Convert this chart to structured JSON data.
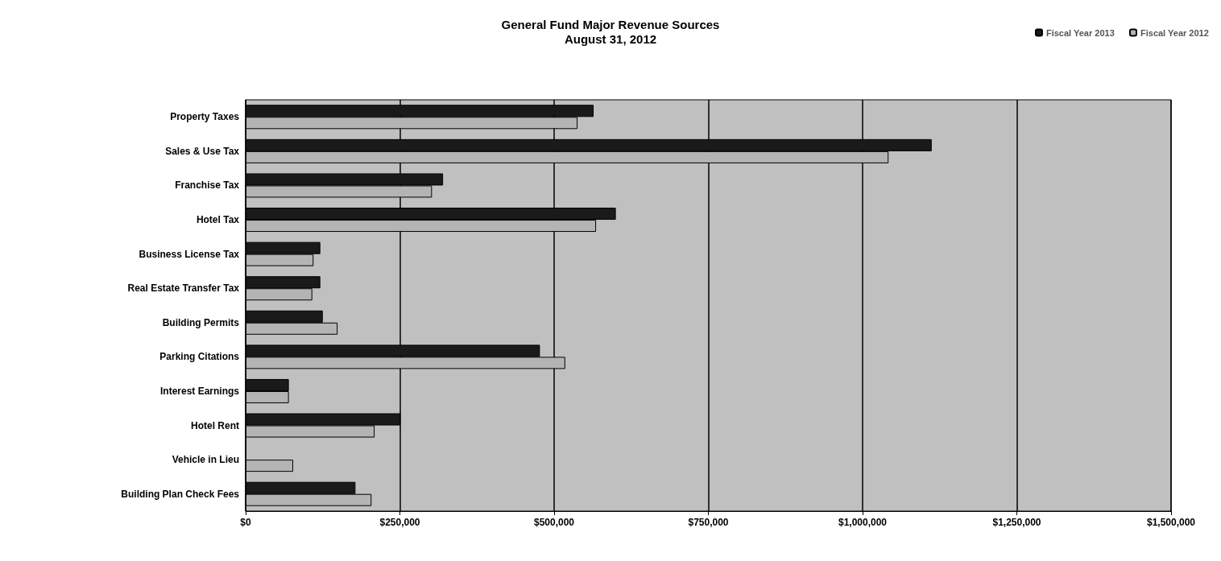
{
  "chart_data": {
    "type": "bar",
    "orientation": "horizontal",
    "title": "General Fund Major Revenue Sources",
    "subtitle": "August 31, 2012",
    "categories": [
      "Property Taxes",
      "Sales & Use Tax",
      "Franchise Tax",
      "Hotel Tax",
      "Business License Tax",
      "Real Estate Transfer Tax",
      "Building Permits",
      "Parking Citations",
      "Interest Earnings",
      "Hotel Rent",
      "Vehicle in Lieu",
      "Building Plan Check Fees"
    ],
    "series": [
      {
        "name": "Fiscal Year 2013",
        "color": "#1a1a1a",
        "values": [
          564000,
          1112000,
          320000,
          600000,
          121000,
          121000,
          125000,
          477000,
          70000,
          251000,
          null,
          178000
        ]
      },
      {
        "name": "Fiscal Year 2012",
        "color": "#b4b4b4",
        "values": [
          538000,
          1042000,
          302000,
          568000,
          110000,
          108000,
          149000,
          518000,
          70000,
          209000,
          77000,
          204000
        ]
      }
    ],
    "xlim": [
      0,
      1500000
    ],
    "xticks": [
      {
        "value": 0,
        "label": "$0"
      },
      {
        "value": 250000,
        "label": "$250,000"
      },
      {
        "value": 500000,
        "label": "$500,000"
      },
      {
        "value": 750000,
        "label": "$750,000"
      },
      {
        "value": 1000000,
        "label": "$1,000,000"
      },
      {
        "value": 1250000,
        "label": "$1,250,000"
      },
      {
        "value": 1500000,
        "label": "$1,500,000"
      }
    ],
    "grid": "x",
    "legend": "top right"
  }
}
